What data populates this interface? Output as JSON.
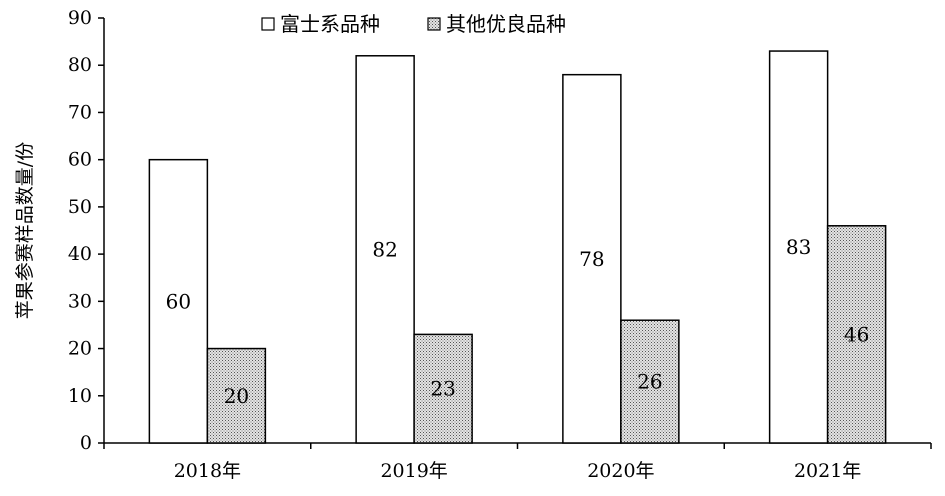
{
  "chart_data": {
    "type": "bar",
    "categories": [
      "2018年",
      "2019年",
      "2020年",
      "2021年"
    ],
    "series": [
      {
        "name": "富士系品种",
        "values": [
          60,
          82,
          78,
          83
        ]
      },
      {
        "name": "其他优良品种",
        "values": [
          20,
          23,
          26,
          46
        ]
      }
    ],
    "ylabel": "苹果参赛样品数量/份",
    "ylim": [
      0,
      90
    ],
    "yticks": [
      0,
      10,
      20,
      30,
      40,
      50,
      60,
      70,
      80,
      90
    ],
    "grid": false,
    "legend_position": "top-center",
    "data_labels": true,
    "series_fills": [
      "#ffffff",
      "dotted-gray"
    ]
  }
}
